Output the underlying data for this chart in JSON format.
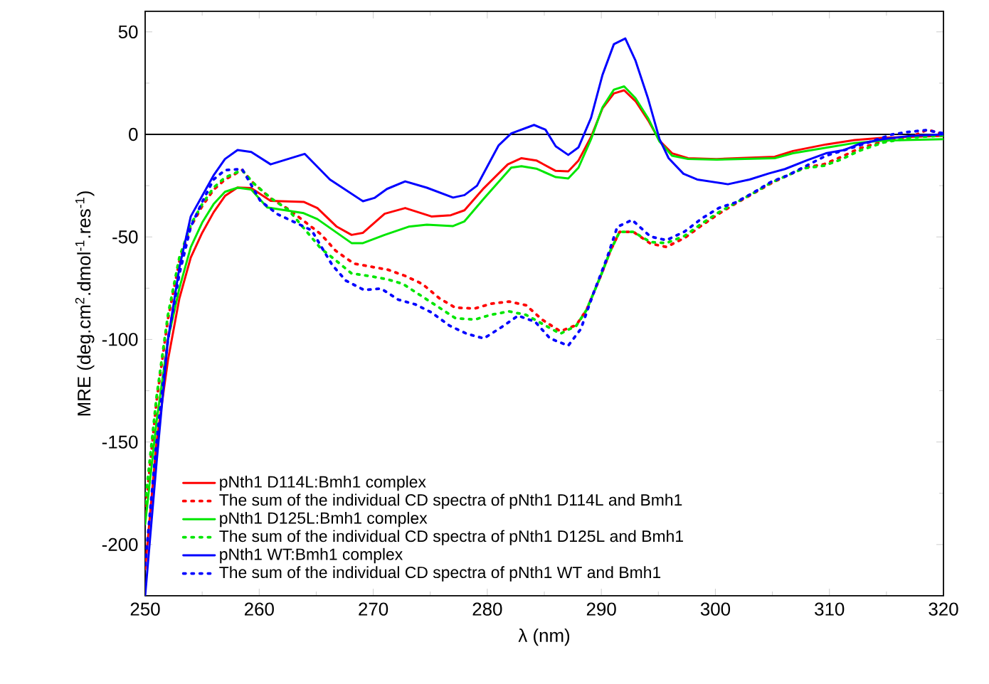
{
  "chart_data": {
    "type": "line",
    "xlabel": "λ (nm)",
    "ylabel": "MRE (deg.cm$^{2}$.dmol$^{-1}$.res$^{-1}$)",
    "xlim": [
      250,
      320
    ],
    "ylim": [
      -225,
      60
    ],
    "xticks": [
      250,
      260,
      270,
      280,
      290,
      300,
      310,
      320
    ],
    "yticks": [
      -200,
      -150,
      -100,
      -50,
      0,
      50
    ],
    "legend": "bottom left",
    "ref_lines": [
      {
        "axis": "y",
        "value": 0,
        "color": "#000000"
      }
    ],
    "series": [
      {
        "name": "pNth1 D114L:Bmh1 complex",
        "color": "#ff0000",
        "line_style": "solid",
        "x": [
          250,
          251,
          252,
          253,
          254,
          255,
          256,
          257,
          258.1,
          259.3,
          261,
          263.9,
          265.1,
          266.8,
          268.1,
          269.1,
          271,
          272.8,
          275.1,
          276.8,
          278,
          279.7,
          281.8,
          283,
          284.3,
          286,
          287.1,
          288,
          289.1,
          290.1,
          291.1,
          292,
          293,
          294.1,
          295.1,
          296.2,
          297.6,
          300.1,
          305.2,
          306.8,
          309.7,
          312.2,
          314.7,
          320
        ],
        "values": [
          -212,
          -150,
          -110,
          -80,
          -60,
          -48,
          -38,
          -30,
          -25.9,
          -26.2,
          -32.4,
          -32.9,
          -35.9,
          -45,
          -49,
          -48,
          -38.7,
          -35.9,
          -40,
          -39.4,
          -37,
          -26.2,
          -14.6,
          -11.6,
          -12.7,
          -17.8,
          -18,
          -12.7,
          -1.2,
          12.7,
          20,
          21.5,
          16.2,
          6.9,
          -3,
          -9.2,
          -11.6,
          -12,
          -10.9,
          -8.1,
          -4.9,
          -2.8,
          -1.6,
          -0.7
        ]
      },
      {
        "name": "The sum of the individual CD spectra of pNth1 D114L and Bmh1",
        "color": "#ff0000",
        "line_style": "dotted",
        "x": [
          250,
          251,
          252,
          253,
          254,
          255,
          256,
          257,
          258.5,
          259.5,
          261,
          262.6,
          265.4,
          266.7,
          268.3,
          269.7,
          271.3,
          272.8,
          274.3,
          275.8,
          277.2,
          278.9,
          280.3,
          281.9,
          283.4,
          284.8,
          286.4,
          287.8,
          288.7,
          290,
          290.8,
          291.6,
          292.8,
          294.3,
          295.7,
          297.3,
          298.8,
          300.3,
          301.8,
          303.3,
          304.9,
          306.3,
          307.8,
          309.5,
          311,
          312.6,
          314.7,
          317.2,
          318.6,
          320
        ],
        "values": [
          -185,
          -130,
          -90,
          -62,
          -45,
          -35,
          -27,
          -22,
          -17.4,
          -23.8,
          -31.2,
          -36.6,
          -48.6,
          -56.7,
          -63,
          -64.4,
          -66,
          -69,
          -72.9,
          -79.9,
          -84.5,
          -84.9,
          -82.6,
          -81.5,
          -83.3,
          -90.3,
          -96,
          -93,
          -85.6,
          -68.3,
          -56.7,
          -47.5,
          -47.5,
          -53.2,
          -54.9,
          -50.5,
          -44.4,
          -38.7,
          -33.6,
          -28.9,
          -23.8,
          -20.1,
          -16.2,
          -14.6,
          -11.1,
          -6.9,
          -3.5,
          -1.2,
          2.3,
          0
        ]
      },
      {
        "name": "pNth1 D125L:Bmh1 complex",
        "color": "#00e600",
        "line_style": "solid",
        "x": [
          250,
          251,
          252,
          253,
          254,
          255,
          256,
          257,
          258.1,
          259.3,
          260.7,
          263.9,
          265.1,
          268.1,
          269.1,
          271,
          273.1,
          274.7,
          277,
          278,
          279.7,
          282.1,
          283,
          284.3,
          286,
          287.1,
          288,
          289.1,
          290.1,
          291.1,
          292,
          293,
          294.1,
          295.1,
          296.2,
          297.6,
          300.1,
          305.2,
          306.8,
          309.7,
          312.2,
          314.7,
          320
        ],
        "values": [
          -190,
          -140,
          -100,
          -75,
          -55,
          -43,
          -34,
          -28,
          -26,
          -26.9,
          -35.6,
          -38.4,
          -41.3,
          -53,
          -53,
          -49,
          -45,
          -44,
          -44.7,
          -42.4,
          -31.3,
          -16.2,
          -15.5,
          -16.7,
          -20.8,
          -21.5,
          -16.2,
          -2.3,
          13.2,
          21.8,
          23.4,
          17.6,
          7.9,
          -3.5,
          -10.4,
          -12,
          -12.3,
          -11.6,
          -9.2,
          -6.5,
          -4.2,
          -3,
          -2.3
        ]
      },
      {
        "name": "The sum of the individual CD spectra of pNth1 D125L and Bmh1",
        "color": "#00e600",
        "line_style": "dotted",
        "x": [
          250,
          251,
          252,
          253,
          254,
          255,
          256,
          257,
          258.5,
          259.5,
          261,
          262.6,
          265.4,
          266.6,
          268.1,
          269.6,
          271.2,
          272.6,
          274.2,
          275.8,
          277.2,
          278.9,
          280.3,
          281.9,
          283.4,
          284.9,
          286.4,
          287.8,
          288.7,
          290,
          290.8,
          291.6,
          292.8,
          294.3,
          295.7,
          297.3,
          298.8,
          300.3,
          301.8,
          303.3,
          304.9,
          306.3,
          307.8,
          309.5,
          311,
          312.6,
          314.7,
          317.2,
          320
        ],
        "values": [
          -180,
          -128,
          -88,
          -60,
          -44,
          -34,
          -26,
          -21,
          -17.4,
          -23.8,
          -31,
          -37,
          -55.6,
          -60.9,
          -67.8,
          -69,
          -70.6,
          -72.9,
          -78.7,
          -84.5,
          -89.6,
          -90.3,
          -88,
          -86.3,
          -88,
          -92.6,
          -97.2,
          -93.3,
          -85.6,
          -68.3,
          -56.7,
          -47.5,
          -47.5,
          -52.5,
          -53,
          -49.5,
          -43.5,
          -38,
          -33.3,
          -28.7,
          -23.5,
          -20,
          -16.5,
          -15.3,
          -12.3,
          -8,
          -4,
          -1.5,
          -0.5
        ]
      },
      {
        "name": "pNth1 WT:Bmh1 complex",
        "color": "#0000ff",
        "line_style": "solid",
        "x": [
          250,
          251,
          252,
          253,
          254,
          255,
          256,
          257,
          258.1,
          259.3,
          261,
          264,
          266.2,
          269.1,
          270.1,
          271.2,
          272.8,
          274.7,
          277,
          278,
          279.1,
          281,
          282.1,
          284.1,
          285.1,
          286,
          287.1,
          288,
          289.1,
          290.1,
          291.1,
          292.1,
          293,
          294.1,
          295.1,
          295.9,
          297.2,
          298.4,
          301.1,
          303,
          304.7,
          306.1,
          308,
          309.7,
          311.3,
          312.6,
          314.7,
          317.2,
          320
        ],
        "values": [
          -225,
          -160,
          -100,
          -65,
          -40,
          -30,
          -20,
          -12,
          -7.6,
          -8.6,
          -14.6,
          -9.5,
          -22,
          -32.6,
          -31,
          -26.6,
          -22.9,
          -26,
          -30.8,
          -29.6,
          -25,
          -5.3,
          0.5,
          4.6,
          2.3,
          -5.8,
          -10,
          -6.3,
          8.1,
          29,
          44,
          46.8,
          35.9,
          17.4,
          -2.3,
          -11.6,
          -19.2,
          -22,
          -24.3,
          -22,
          -19,
          -16.9,
          -12.7,
          -9.2,
          -7.6,
          -4.7,
          -2.3,
          -0.7,
          0
        ]
      },
      {
        "name": "The sum of the individual CD spectra of pNth1 WT and Bmh1",
        "color": "#0000ff",
        "line_style": "dotted",
        "x": [
          250,
          251,
          252,
          253,
          254,
          255,
          256,
          257,
          258.5,
          260.1,
          261.6,
          263.1,
          264.6,
          266.4,
          267.6,
          269.2,
          270.7,
          272.2,
          273.7,
          275.1,
          276.7,
          278.2,
          279.7,
          281.3,
          282.7,
          284.2,
          285.5,
          287.1,
          288.2,
          289.3,
          290.5,
          291.4,
          292.7,
          294.3,
          295.7,
          297.3,
          298.8,
          300.3,
          301.8,
          303.3,
          304.9,
          306.3,
          307.9,
          309.7,
          312.4,
          315.5,
          316.9,
          318.5,
          320
        ],
        "values": [
          -210,
          -150,
          -100,
          -68,
          -45,
          -33,
          -22,
          -17.4,
          -16.9,
          -32.4,
          -38.9,
          -42.8,
          -46.8,
          -63.7,
          -71.3,
          -75.9,
          -75.2,
          -80.6,
          -82.9,
          -86.8,
          -93.3,
          -97.2,
          -99.5,
          -93.8,
          -88.4,
          -91.4,
          -99.5,
          -103,
          -94.9,
          -77.6,
          -60.2,
          -45.1,
          -41.7,
          -49.8,
          -51.6,
          -47.4,
          -41,
          -35.9,
          -33.1,
          -28.5,
          -23.1,
          -20.1,
          -15.5,
          -10.4,
          -5.8,
          0,
          1.2,
          2.1,
          0.5
        ]
      }
    ]
  }
}
